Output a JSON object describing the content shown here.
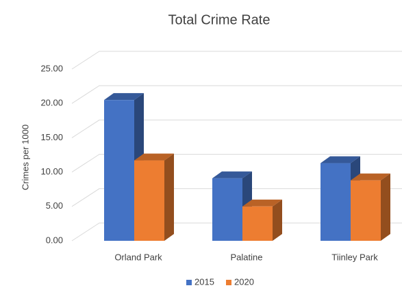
{
  "chart_data": {
    "type": "bar3d",
    "title": "Total Crime Rate",
    "y_label": "Crimes per 1000",
    "categories": [
      "Orland Park",
      "Palatine",
      "Tiinley Park"
    ],
    "series": [
      {
        "name": "2015",
        "color": "#4472c4",
        "values": [
          20.5,
          9.1,
          11.3
        ]
      },
      {
        "name": "2020",
        "color": "#ed7d31",
        "values": [
          11.7,
          5.0,
          8.8
        ]
      }
    ],
    "ylim": [
      0,
      25
    ],
    "yticks": [
      {
        "value": 0,
        "label": "0.00"
      },
      {
        "value": 5,
        "label": "5.00"
      },
      {
        "value": 10,
        "label": "10.00"
      },
      {
        "value": 15,
        "label": "15.00"
      },
      {
        "value": 20,
        "label": "20.00"
      },
      {
        "value": 25,
        "label": "25.00"
      }
    ],
    "grid": true,
    "legend": "bottom"
  }
}
